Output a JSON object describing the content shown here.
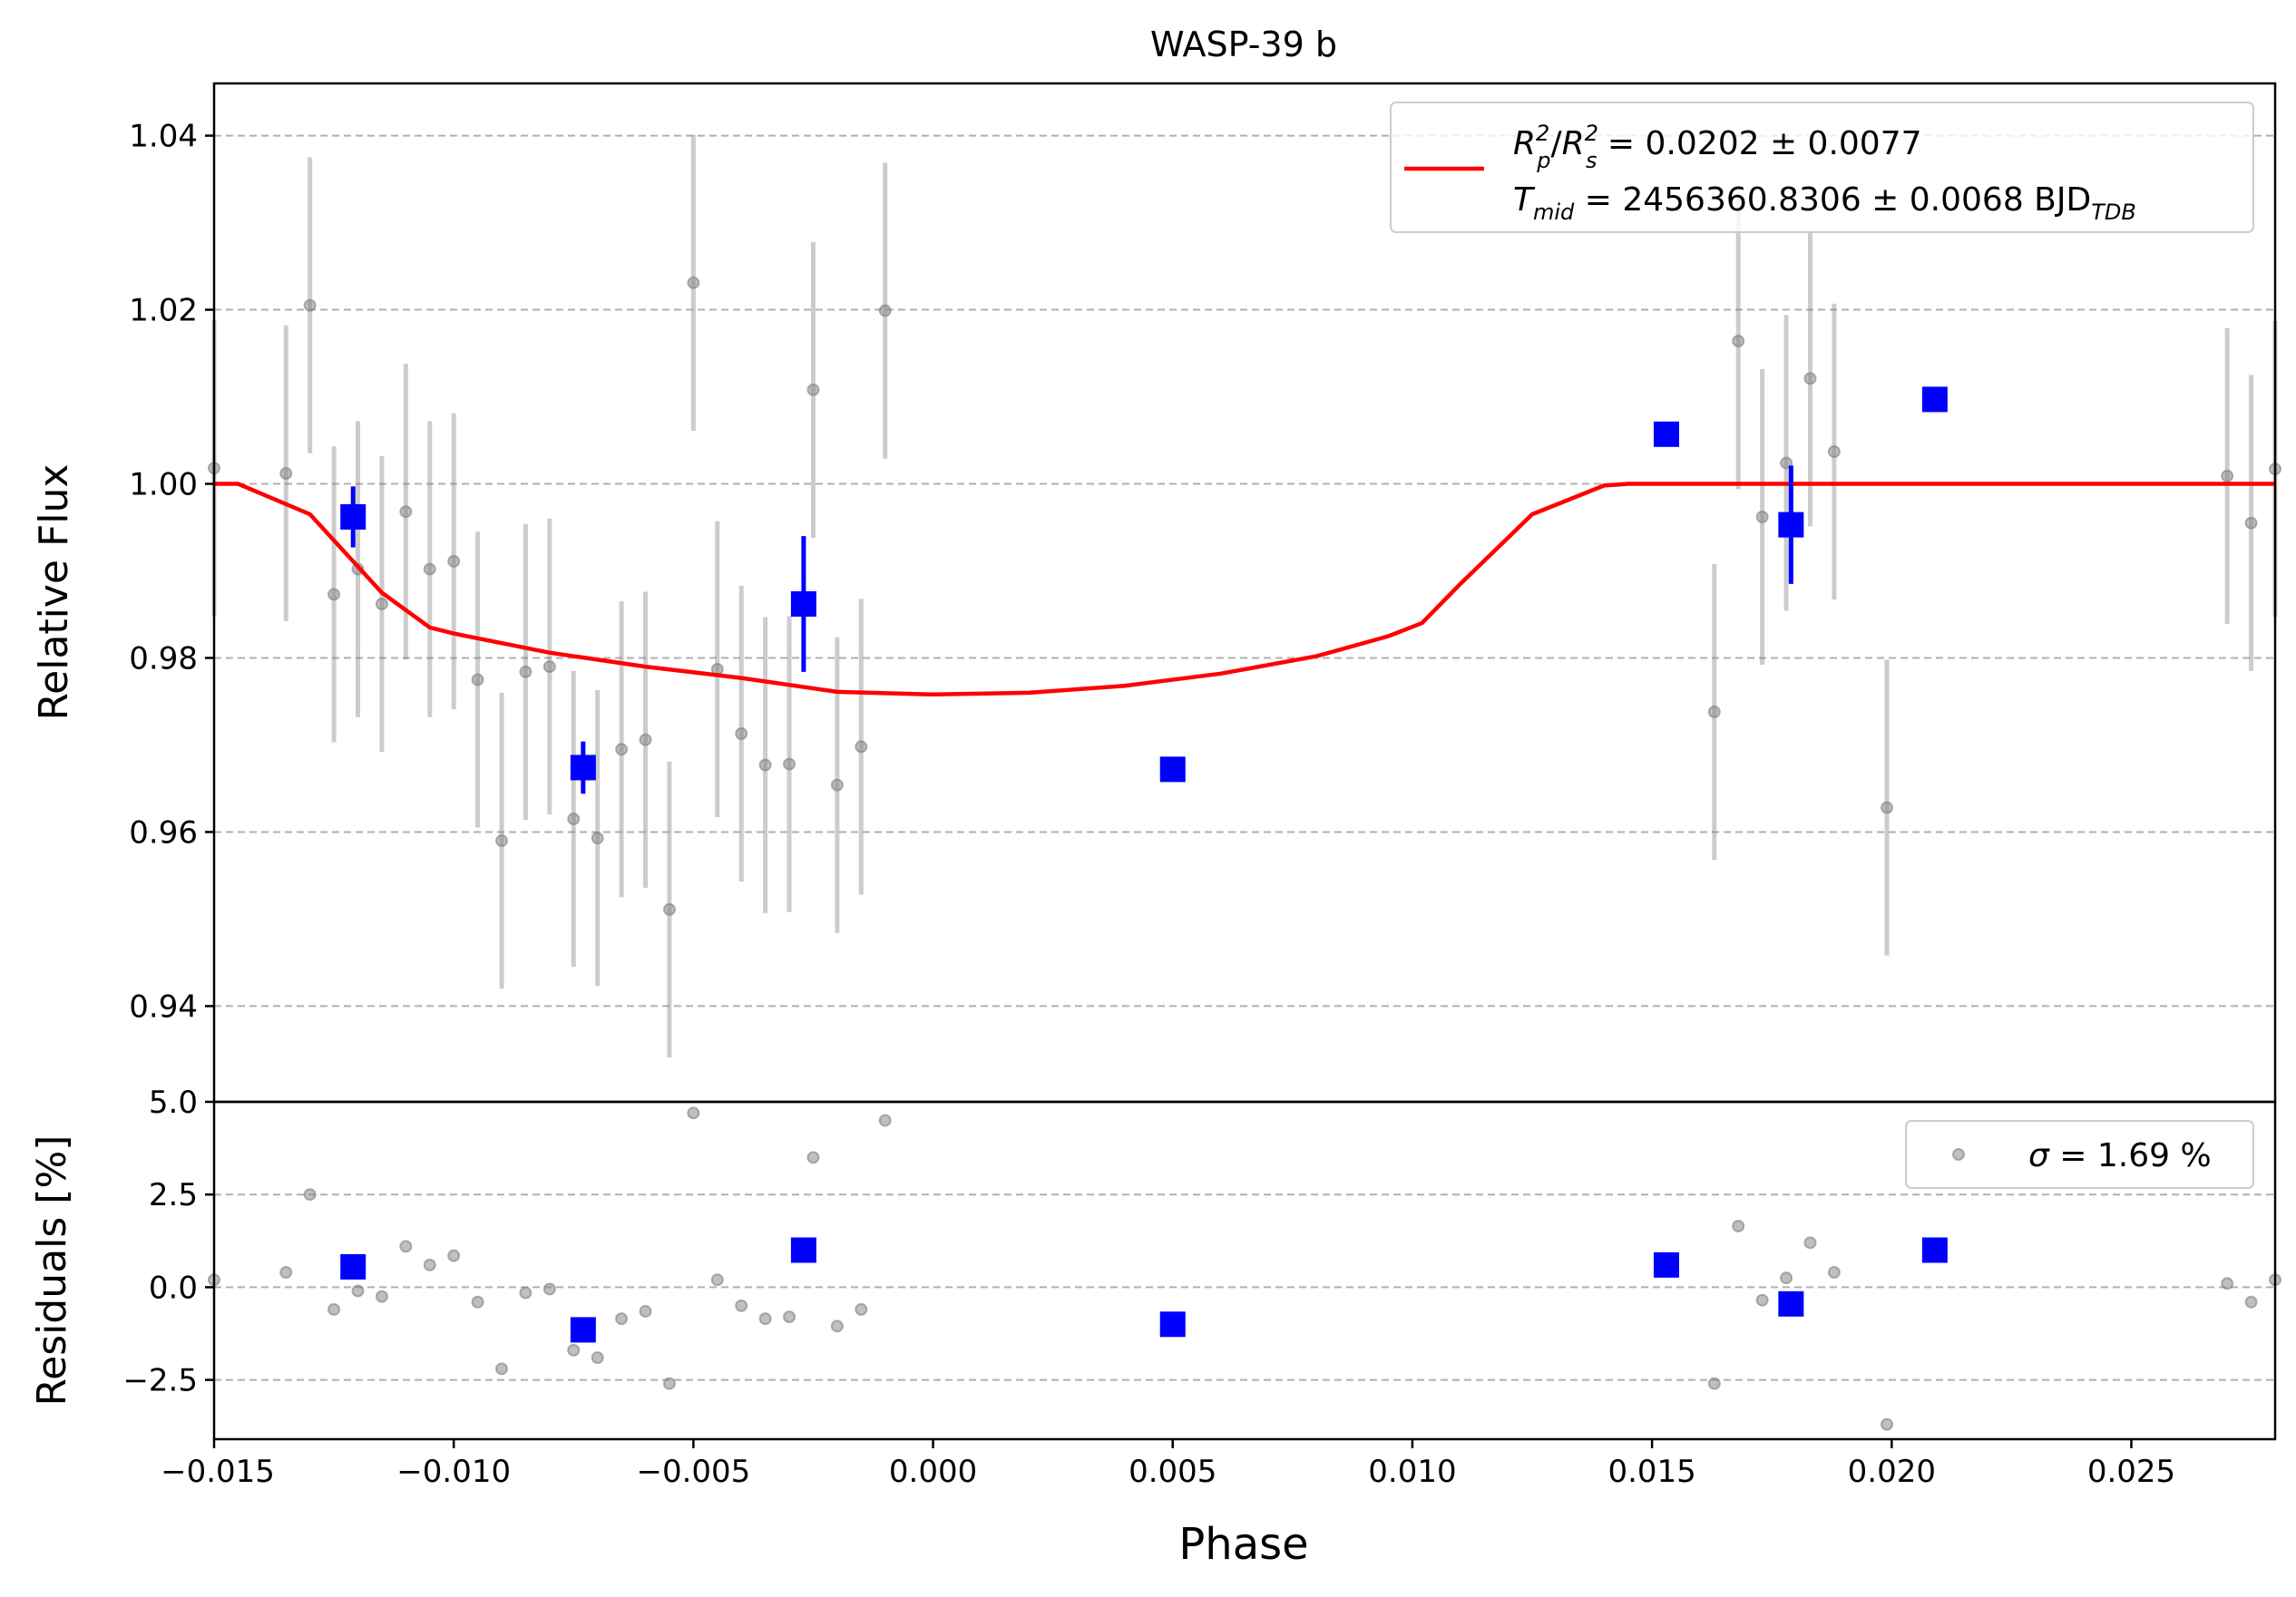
{
  "chart_data": [
    {
      "type": "scatter",
      "title": "WASP-39 b",
      "xlabel": "",
      "ylabel": "Relative Flux",
      "xlim": [
        -0.015,
        0.028
      ],
      "ylim": [
        0.929,
        1.046
      ],
      "yticks": [
        0.94,
        0.96,
        0.98,
        1.0,
        1.02,
        1.04
      ],
      "ytick_labels": [
        "0.94",
        "0.96",
        "0.98",
        "1.00",
        "1.02",
        "1.04"
      ],
      "grid": "horizontal dashed",
      "colors": {
        "raw": "#808080",
        "binned": "#0000ff",
        "model": "#ff0000"
      },
      "legend": {
        "placement": "top-right",
        "line1": {
          "a": "R",
          "a_sup": "2",
          "a_sub": "p",
          "b": "R",
          "b_sup": "2",
          "b_sub": "s",
          "value": " = 0.0202 ± 0.0077"
        },
        "line2": {
          "a": "T",
          "a_sub": "mid",
          "value": " = 2456360.8306 ± 0.0068 BJD",
          "value_sub": "TDB"
        }
      },
      "series": [
        {
          "role": "raw",
          "x": [
            -0.015,
            -0.0135,
            -0.013,
            -0.0125,
            -0.012,
            -0.0115,
            -0.011,
            -0.0105,
            -0.01,
            -0.0095,
            -0.009,
            -0.0085,
            -0.008,
            -0.0075,
            -0.007,
            -0.0065,
            -0.006,
            -0.0055,
            -0.005,
            -0.0045,
            -0.004,
            -0.0035,
            -0.003,
            -0.0025,
            -0.002,
            -0.0015,
            -0.001,
            0.0163,
            0.0168,
            0.0173,
            0.0178,
            0.0183,
            0.0188,
            0.0199,
            0.027,
            0.0275,
            0.028
          ],
          "y": [
            1.0018,
            1.0012,
            1.0205,
            0.9873,
            0.9902,
            0.9862,
            0.9968,
            0.9902,
            0.9911,
            0.9775,
            0.959,
            0.9784,
            0.979,
            0.9615,
            0.9593,
            0.9695,
            0.9706,
            0.9511,
            1.0231,
            0.9787,
            0.9713,
            0.9677,
            0.9678,
            1.0108,
            0.9654,
            0.9698,
            1.0199,
            0.9738,
            1.0164,
            0.9962,
            1.0024,
            1.0121,
            1.0037,
            0.9628,
            1.0009,
            0.9955,
            1.0017
          ],
          "yerr": [
            0.017,
            0.017,
            0.017,
            0.017,
            0.017,
            0.017,
            0.017,
            0.017,
            0.017,
            0.017,
            0.017,
            0.017,
            0.017,
            0.017,
            0.017,
            0.017,
            0.017,
            0.017,
            0.017,
            0.017,
            0.017,
            0.017,
            0.017,
            0.017,
            0.017,
            0.017,
            0.017,
            0.017,
            0.017,
            0.017,
            0.017,
            0.017,
            0.017,
            0.017,
            0.017,
            0.017,
            0.017
          ]
        },
        {
          "role": "binned",
          "x": [
            -0.0121,
            -0.0073,
            -0.0027,
            0.005,
            0.0153,
            0.0179,
            0.0209
          ],
          "y": [
            0.9962,
            0.9674,
            0.9862,
            0.9672,
            1.0057,
            0.9953,
            1.0097
          ],
          "yerr": [
            0.0035,
            0.003,
            0.0078,
            0.0,
            0.0,
            0.0068,
            0.0
          ]
        },
        {
          "role": "model",
          "x": [
            -0.015,
            -0.0145,
            -0.013,
            -0.0115,
            -0.0105,
            -0.01,
            -0.008,
            -0.006,
            -0.004,
            -0.002,
            0.0,
            0.002,
            0.004,
            0.006,
            0.008,
            0.0095,
            0.0102,
            0.011,
            0.0125,
            0.014,
            0.0145,
            0.016,
            0.02,
            0.024,
            0.028
          ],
          "y": [
            1.0,
            1.0,
            0.9965,
            0.9875,
            0.9835,
            0.9828,
            0.9806,
            0.979,
            0.9777,
            0.9761,
            0.9758,
            0.976,
            0.9768,
            0.9782,
            0.9802,
            0.9825,
            0.984,
            0.9885,
            0.9965,
            0.9998,
            1.0,
            1.0,
            1.0,
            1.0,
            1.0
          ]
        }
      ]
    },
    {
      "type": "scatter",
      "xlabel": "Phase",
      "ylabel": "Residuals [%]",
      "xlim": [
        -0.015,
        0.028
      ],
      "ylim": [
        -4.1,
        5.0
      ],
      "yticks": [
        -2.5,
        0.0,
        2.5,
        5.0
      ],
      "ytick_labels": [
        "−2.5",
        "0.0",
        "2.5",
        "5.0"
      ],
      "xticks": [
        -0.015,
        -0.01,
        -0.005,
        0.0,
        0.005,
        0.01,
        0.015,
        0.02,
        0.025
      ],
      "xtick_labels": [
        "−0.015",
        "−0.010",
        "−0.005",
        "0.000",
        "0.005",
        "0.010",
        "0.015",
        "0.020",
        "0.025"
      ],
      "grid": "horizontal dashed",
      "legend": {
        "placement": "top-right",
        "symbol": "σ",
        "value": " = 1.69 %"
      },
      "series": [
        {
          "role": "raw",
          "x": [
            -0.015,
            -0.0135,
            -0.013,
            -0.0125,
            -0.012,
            -0.0115,
            -0.011,
            -0.0105,
            -0.01,
            -0.0095,
            -0.009,
            -0.0085,
            -0.008,
            -0.0075,
            -0.007,
            -0.0065,
            -0.006,
            -0.0055,
            -0.005,
            -0.0045,
            -0.004,
            -0.0035,
            -0.003,
            -0.0025,
            -0.002,
            -0.0015,
            -0.001,
            0.0163,
            0.0168,
            0.0173,
            0.0178,
            0.0183,
            0.0188,
            0.0199,
            0.027,
            0.0275,
            0.028
          ],
          "y": [
            0.2,
            0.4,
            2.5,
            -0.6,
            -0.1,
            -0.25,
            1.1,
            0.6,
            0.85,
            -0.4,
            -2.2,
            -0.15,
            -0.05,
            -1.7,
            -1.9,
            -0.85,
            -0.65,
            -2.6,
            4.7,
            0.2,
            -0.5,
            -0.85,
            -0.8,
            3.5,
            -1.05,
            -0.6,
            4.5,
            -2.6,
            1.65,
            -0.35,
            0.25,
            1.2,
            0.4,
            -3.7,
            0.1,
            -0.4,
            0.2
          ]
        },
        {
          "role": "binned",
          "x": [
            -0.0121,
            -0.0073,
            -0.0027,
            0.005,
            0.0153,
            0.0179,
            0.0209
          ],
          "y": [
            0.55,
            -1.15,
            1.0,
            -1.0,
            0.6,
            -0.45,
            1.0
          ]
        }
      ]
    }
  ]
}
